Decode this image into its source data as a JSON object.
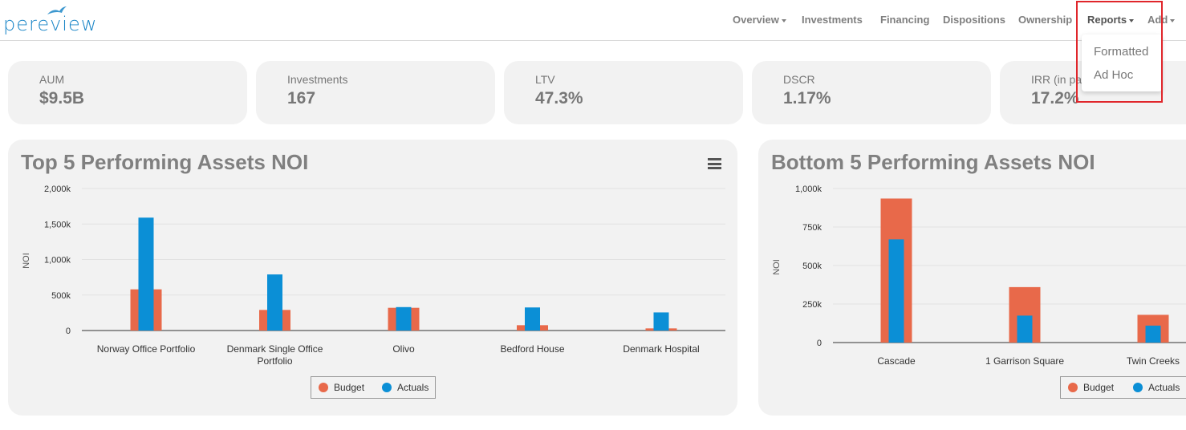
{
  "app": {
    "logo_text": "pereview"
  },
  "nav": {
    "items": [
      "Overview",
      "Investments",
      "Financing",
      "Dispositions",
      "Ownership",
      "Reports",
      "Add"
    ],
    "active": "Reports"
  },
  "reports_menu": {
    "items": [
      "Formatted",
      "Ad Hoc"
    ]
  },
  "kpis": [
    {
      "label": "AUM",
      "value": "$9.5B"
    },
    {
      "label": "Investments",
      "value": "167"
    },
    {
      "label": "LTV",
      "value": "47.3%"
    },
    {
      "label": "DSCR",
      "value": "1.17%"
    },
    {
      "label": "IRR (in pa",
      "value": "17.2%"
    }
  ],
  "colors": {
    "budget": "#e8694a",
    "actuals": "#0b8fd6",
    "panel_bg": "#f2f2f2",
    "highlight": "#e0262b"
  },
  "top_panel": {
    "menu_icon": "hamburger-icon"
  },
  "chart_data": [
    {
      "type": "bar",
      "title": "Top 5 Performing Assets NOI",
      "ylabel": "NOI",
      "xlabel": "",
      "categories": [
        "Norway Office Portfolio",
        "Denmark Single Office Portfolio",
        "Olivo",
        "Bedford House",
        "Denmark Hospital"
      ],
      "series": [
        {
          "name": "Budget",
          "values": [
            580000,
            290000,
            320000,
            75000,
            30000
          ]
        },
        {
          "name": "Actuals",
          "values": [
            1590000,
            790000,
            330000,
            325000,
            255000
          ]
        }
      ],
      "yticks": [
        "0",
        "500k",
        "1,000k",
        "1,500k",
        "2,000k"
      ],
      "ylim": [
        0,
        2000000
      ],
      "legend": "bottom-center",
      "grid": true
    },
    {
      "type": "bar",
      "title": "Bottom 5 Performing Assets NOI",
      "ylabel": "NOI",
      "xlabel": "",
      "categories": [
        "Cascade",
        "1 Garrison Square",
        "Twin Creeks"
      ],
      "series": [
        {
          "name": "Budget",
          "values": [
            935000,
            360000,
            180000
          ]
        },
        {
          "name": "Actuals",
          "values": [
            670000,
            175000,
            110000
          ]
        }
      ],
      "yticks": [
        "0",
        "250k",
        "500k",
        "750k",
        "1,000k"
      ],
      "ylim": [
        0,
        1000000
      ],
      "legend": "bottom-right",
      "grid": true
    }
  ]
}
